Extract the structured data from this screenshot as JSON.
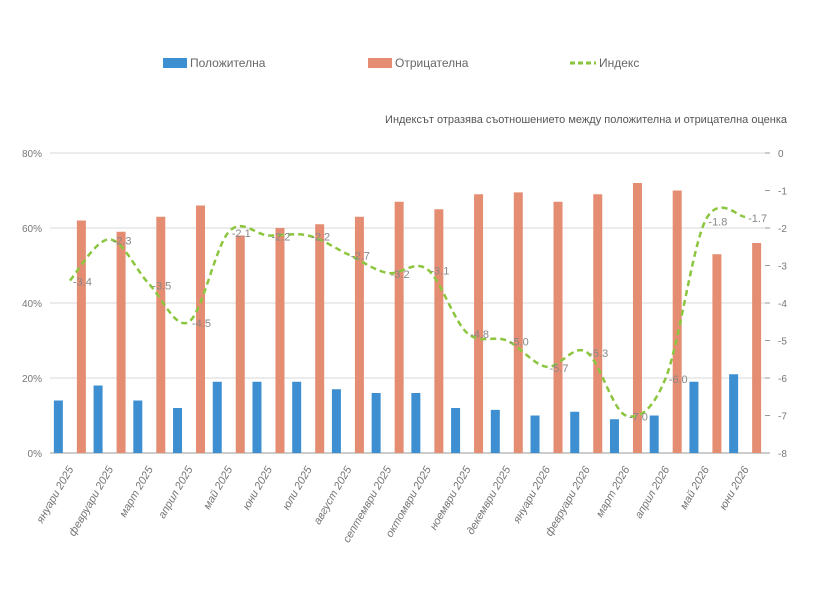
{
  "legend": {
    "positive": "Положителна",
    "negative": "Отрицателна",
    "index": "Индекс"
  },
  "note": "Индексът отразява съотношението между положителна и  отрицателна оценка",
  "colors": {
    "positive": "#3d8fd1",
    "negative": "#e58d73",
    "index": "#8cc63f",
    "grid": "#d9d9d9",
    "axis": "#999999"
  },
  "chart_data": {
    "type": "bar",
    "categories": [
      "януари 2025",
      "февруари 2025",
      "март 2025",
      "април 2025",
      "май 2025",
      "юни 2025",
      "юли 2025",
      "август 2025",
      "септември 2025",
      "октомври 2025",
      "ноември 2025",
      "декември 2025",
      "януари 2026",
      "февруари 2026",
      "март 2026",
      "април 2026",
      "май 2026",
      "юни 2026"
    ],
    "series": [
      {
        "name": "Положителна",
        "type": "bar",
        "axis": "left",
        "values": [
          14,
          18,
          14,
          12,
          19,
          19,
          19,
          17,
          16,
          16,
          12,
          11.5,
          10,
          11,
          9,
          10,
          19,
          21
        ]
      },
      {
        "name": "Отрицателна",
        "type": "bar",
        "axis": "left",
        "values": [
          62,
          59,
          63,
          66,
          58,
          60,
          61,
          63,
          67,
          65,
          69,
          69.5,
          67,
          69,
          72,
          70,
          53,
          56
        ]
      },
      {
        "name": "Индекс",
        "type": "line",
        "style": "dashed",
        "smooth": true,
        "axis": "right",
        "values": [
          -3.4,
          -2.3,
          -3.5,
          -4.5,
          -2.1,
          -2.2,
          -2.2,
          -2.7,
          -3.2,
          -3.1,
          -4.8,
          -5.0,
          -5.7,
          -5.3,
          -7.0,
          -6.0,
          -1.8,
          -1.7
        ]
      }
    ],
    "index_labels": [
      "-3.4",
      "-2.3",
      "-3.5",
      "-4.5",
      "-2.1",
      "-2.2",
      "-2.2",
      "-2.7",
      "-3.2",
      "-3.1",
      "-4.8",
      "-5.0",
      "-5.7",
      "-5.3",
      "-7.0",
      "-6.0",
      "-1.8",
      "-1.7"
    ],
    "y_left": {
      "ticks": [
        "0%",
        "20%",
        "40%",
        "60%",
        "80%"
      ],
      "tick_values": [
        0,
        20,
        40,
        60,
        80
      ],
      "ylim": [
        0,
        80
      ]
    },
    "y_right": {
      "ticks": [
        "0",
        "-1",
        "-2",
        "-3",
        "-4",
        "-5",
        "-6",
        "-7",
        "-8"
      ],
      "tick_values": [
        0,
        -1,
        -2,
        -3,
        -4,
        -5,
        -6,
        -7,
        -8
      ],
      "ylim": [
        -8,
        0
      ]
    },
    "grid": true,
    "legend_position": "top"
  }
}
